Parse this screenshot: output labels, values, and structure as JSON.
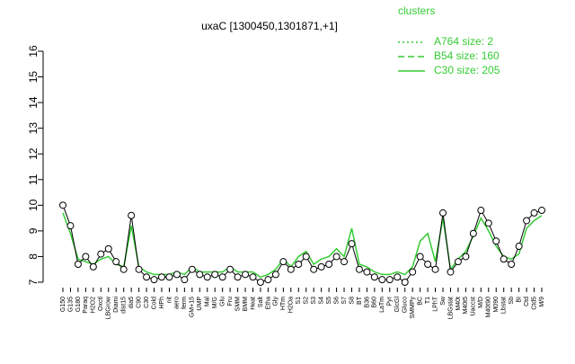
{
  "chart_data": {
    "type": "line",
    "title": "uxaC [1300450,1301871,+1]",
    "categories": [
      "G150",
      "G135",
      "G180",
      "Paraq",
      "H2O2",
      "Oxctl",
      "LBGrow",
      "Diami",
      "dist15",
      "dia5",
      "C90",
      "C30",
      "Cold",
      "HPh",
      "nit",
      "aero",
      "ferm",
      "GM+15",
      "UMP",
      "Mal",
      "M/G",
      "Glu",
      "Fru",
      "SMM",
      "BMM",
      "Heat",
      "Salt",
      "Etha",
      "Gly",
      "HTm",
      "H2Oa",
      "S1",
      "S2",
      "S3",
      "S4",
      "S5",
      "S6",
      "S7",
      "S8",
      "BT",
      "B36",
      "B60",
      "LaTm",
      "Pyr",
      "GlcGl",
      "Gluco",
      "SMMPy",
      "BC",
      "T1",
      "LPhT",
      "Sw",
      "LBGstat",
      "M40t",
      "M40t5",
      "Uaccst",
      "M/D",
      "M40t90",
      "M090",
      "Lbstat",
      "Sb",
      "BI",
      "Ctd",
      "Ctd5",
      "M/9"
    ],
    "values": [
      10.0,
      9.2,
      7.7,
      8.0,
      7.6,
      8.1,
      8.3,
      7.8,
      7.5,
      9.6,
      7.5,
      7.2,
      7.1,
      7.2,
      7.2,
      7.3,
      7.1,
      7.5,
      7.3,
      7.2,
      7.3,
      7.2,
      7.5,
      7.2,
      7.3,
      7.2,
      7.0,
      7.1,
      7.3,
      7.8,
      7.5,
      7.7,
      8.0,
      7.5,
      7.6,
      7.7,
      8.0,
      7.8,
      8.5,
      7.5,
      7.4,
      7.2,
      7.1,
      7.1,
      7.2,
      7.0,
      7.4,
      8.0,
      7.7,
      7.5,
      9.7,
      7.4,
      7.8,
      8.0,
      8.9,
      9.8,
      9.3,
      8.6,
      7.9,
      7.7,
      8.4,
      9.4,
      9.7,
      9.8
    ],
    "color": "#000000",
    "series": [
      {
        "name": "C30 size: 205",
        "color": "#33cc33",
        "values": [
          9.7,
          8.9,
          7.9,
          7.8,
          7.7,
          7.9,
          8.0,
          7.7,
          7.6,
          9.2,
          7.6,
          7.4,
          7.3,
          7.3,
          7.3,
          7.4,
          7.3,
          7.6,
          7.4,
          7.4,
          7.4,
          7.4,
          7.6,
          7.4,
          7.4,
          7.4,
          7.2,
          7.3,
          7.5,
          7.9,
          7.6,
          8.0,
          8.2,
          7.7,
          7.9,
          8.0,
          8.3,
          8.0,
          9.1,
          7.7,
          7.6,
          7.4,
          7.3,
          7.3,
          7.4,
          7.3,
          7.6,
          8.6,
          8.9,
          7.8,
          9.5,
          7.5,
          7.9,
          8.2,
          8.8,
          9.5,
          9.0,
          8.4,
          8.0,
          7.9,
          8.1,
          9.1,
          9.4,
          9.6
        ]
      }
    ],
    "legend": {
      "title": "clusters",
      "entries": [
        {
          "label": "A764 size: 2",
          "style": "dotted"
        },
        {
          "label": "B54 size: 160",
          "style": "dashed"
        },
        {
          "label": "C30 size: 205",
          "style": "solid"
        }
      ]
    },
    "ylim": [
      7,
      16
    ],
    "yticks": [
      7,
      8,
      9,
      10,
      11,
      12,
      13,
      14,
      15,
      16
    ]
  }
}
